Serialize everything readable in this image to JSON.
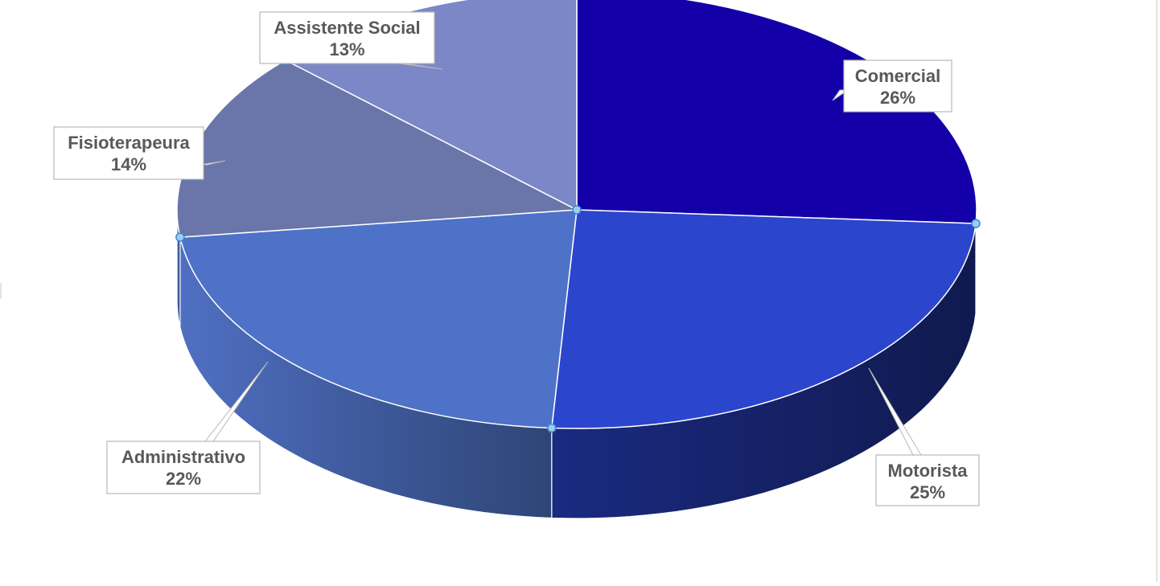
{
  "chart_data": {
    "type": "pie",
    "style": "3d-exploded",
    "title": "",
    "slices": [
      {
        "label": "Comercial",
        "value": 26,
        "display": "26%",
        "color": "#1300a9"
      },
      {
        "label": "Motorista",
        "value": 25,
        "display": "25%",
        "color": "#2b45cd"
      },
      {
        "label": "Administrativo",
        "value": 22,
        "display": "22%",
        "color": "#4e72c7"
      },
      {
        "label": "Fisioterapeura",
        "value": 14,
        "display": "14%",
        "color": "#6a75a9"
      },
      {
        "label": "Assistente Social",
        "value": 13,
        "display": "13%",
        "color": "#7b87c6"
      }
    ],
    "legend": "none",
    "data_labels": "callouts with label and percentage"
  }
}
